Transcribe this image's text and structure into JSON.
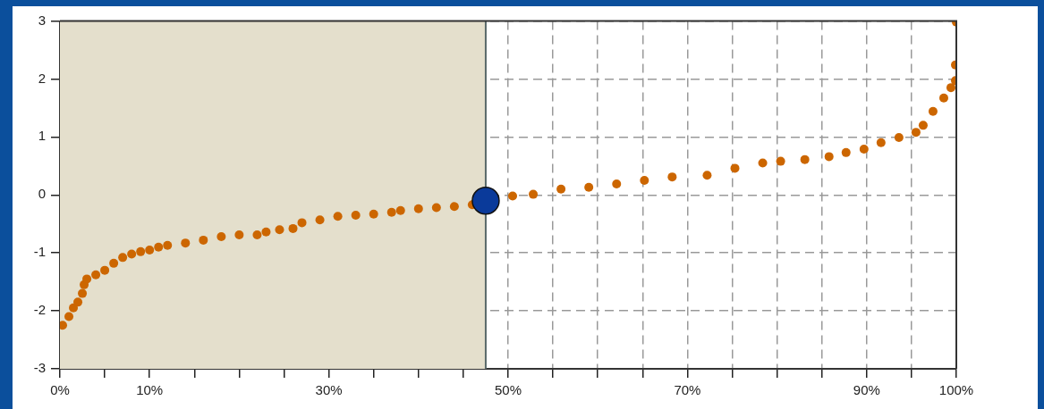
{
  "chart_data": {
    "type": "scatter",
    "marker": "circle",
    "grid": true,
    "xlim": [
      0,
      100
    ],
    "ylim": [
      -3,
      3
    ],
    "yticks": [
      -3,
      -2,
      -1,
      0,
      1,
      2,
      3
    ],
    "xticks": [
      {
        "value": 0,
        "label": "0%"
      },
      {
        "value": 5,
        "label": null
      },
      {
        "value": 10,
        "label": "10%"
      },
      {
        "value": 15,
        "label": null
      },
      {
        "value": 20,
        "label": null
      },
      {
        "value": 25,
        "label": null
      },
      {
        "value": 30,
        "label": "30%"
      },
      {
        "value": 35,
        "label": null
      },
      {
        "value": 40,
        "label": null
      },
      {
        "value": 45,
        "label": null
      },
      {
        "value": 50,
        "label": "50%"
      },
      {
        "value": 55,
        "label": null
      },
      {
        "value": 60,
        "label": null
      },
      {
        "value": 65,
        "label": null
      },
      {
        "value": 70,
        "label": "70%"
      },
      {
        "value": 75,
        "label": null
      },
      {
        "value": 80,
        "label": null
      },
      {
        "value": 85,
        "label": null
      },
      {
        "value": 90,
        "label": "90%"
      },
      {
        "value": 95,
        "label": null
      },
      {
        "value": 100,
        "label": "100%"
      }
    ],
    "bands": [
      {
        "axis": "x",
        "from": 0,
        "to": 47.5,
        "color": "#e4dfcc"
      }
    ],
    "ref_lines": [
      {
        "axis": "x",
        "value": 47.5,
        "color": "#5a6a6a"
      }
    ],
    "series": [
      {
        "color": "#cc6600",
        "x": [
          0.3,
          1,
          1.5,
          2,
          2.5,
          2.7,
          3,
          4,
          5,
          6,
          7,
          8,
          9,
          10,
          11,
          12,
          14,
          16,
          18,
          20,
          22,
          23,
          24.5,
          26,
          27,
          29,
          31,
          33,
          35,
          37,
          38,
          40,
          42,
          44,
          46,
          50.5,
          52.8,
          55.9,
          59,
          62.1,
          65.2,
          68.3,
          72.2,
          75.3,
          78.4,
          80.4,
          83.1,
          85.8,
          87.7,
          89.7,
          91.6,
          93.6,
          95.5,
          96.3,
          97.4,
          98.6,
          99.4,
          99.9,
          99.9,
          100
        ],
        "values": [
          -2.25,
          -2.1,
          -1.95,
          -1.85,
          -1.7,
          -1.55,
          -1.45,
          -1.38,
          -1.3,
          -1.18,
          -1.08,
          -1.02,
          -0.98,
          -0.95,
          -0.9,
          -0.87,
          -0.83,
          -0.78,
          -0.72,
          -0.69,
          -0.69,
          -0.64,
          -0.6,
          -0.58,
          -0.48,
          -0.43,
          -0.37,
          -0.35,
          -0.33,
          -0.3,
          -0.27,
          -0.24,
          -0.22,
          -0.2,
          -0.17,
          -0.02,
          0.01,
          0.1,
          0.13,
          0.19,
          0.25,
          0.31,
          0.34,
          0.46,
          0.55,
          0.58,
          0.61,
          0.66,
          0.73,
          0.79,
          0.9,
          0.99,
          1.08,
          1.2,
          1.44,
          1.67,
          1.85,
          1.97,
          2.24,
          2.98
        ]
      },
      {
        "color": "#0a3a9a",
        "x": [
          47.5
        ],
        "values": [
          -0.1
        ]
      }
    ]
  }
}
